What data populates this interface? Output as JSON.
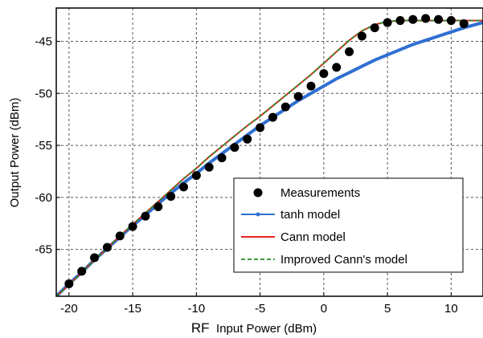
{
  "chart_data": {
    "type": "line",
    "xlabel_prefix": "RF",
    "xlabel": "Input Power (dBm)",
    "ylabel": "Output Power (dBm)",
    "xlim": [
      -21,
      12.5
    ],
    "ylim": [
      -69.5,
      -41.8
    ],
    "xticks": [
      -20,
      -15,
      -10,
      -5,
      0,
      5,
      10
    ],
    "yticks": [
      -45,
      -50,
      -55,
      -60,
      -65
    ],
    "grid": true,
    "legend_position": "lower-right",
    "series": [
      {
        "name": "Measurements",
        "kind": "scatter",
        "color": "#000000",
        "x": [
          -20,
          -19,
          -18,
          -17,
          -16,
          -15,
          -14,
          -13,
          -12,
          -11,
          -10,
          -9,
          -8,
          -7,
          -6,
          -5,
          -4,
          -3,
          -2,
          -1,
          0,
          1,
          2,
          3,
          4,
          5,
          6,
          7,
          8,
          9,
          10,
          11
        ],
        "y": [
          -68.3,
          -67.1,
          -65.8,
          -64.8,
          -63.7,
          -62.8,
          -61.8,
          -60.9,
          -59.9,
          -59.0,
          -57.9,
          -57.1,
          -56.2,
          -55.2,
          -54.4,
          -53.3,
          -52.3,
          -51.3,
          -50.3,
          -49.3,
          -48.1,
          -47.5,
          -46.0,
          -44.5,
          -43.7,
          -43.2,
          -43.0,
          -42.9,
          -42.8,
          -42.9,
          -43.0,
          -43.3
        ]
      },
      {
        "name": "tanh model",
        "kind": "line",
        "color": "#2f6fd1",
        "x": [
          -21,
          -20,
          -19,
          -18,
          -17,
          -16,
          -15,
          -14,
          -13,
          -12,
          -11,
          -10,
          -9,
          -8,
          -7,
          -6,
          -5,
          -4,
          -3,
          -2,
          -1,
          0,
          1,
          2,
          3,
          4,
          5,
          6,
          7,
          8,
          9,
          10,
          11,
          12.5
        ],
        "y": [
          -69.5,
          -68.3,
          -67.2,
          -66.0,
          -64.9,
          -63.8,
          -62.7,
          -61.7,
          -60.6,
          -59.6,
          -58.6,
          -57.7,
          -56.7,
          -55.8,
          -54.9,
          -54.0,
          -53.1,
          -52.3,
          -51.5,
          -50.7,
          -50.0,
          -49.3,
          -48.6,
          -48.0,
          -47.4,
          -46.8,
          -46.3,
          -45.8,
          -45.3,
          -44.9,
          -44.5,
          -44.1,
          -43.7,
          -43.2
        ]
      },
      {
        "name": "Cann model",
        "kind": "line",
        "color": "#e8231b",
        "x": [
          -21,
          -20,
          -19,
          -18,
          -17,
          -16,
          -15,
          -14,
          -13,
          -12,
          -11,
          -10,
          -9,
          -8,
          -7,
          -6,
          -5,
          -4,
          -3,
          -2,
          -1,
          0,
          1,
          2,
          3,
          4,
          5,
          6,
          7,
          8,
          9,
          10,
          11,
          12.5
        ],
        "y": [
          -69.5,
          -68.4,
          -67.2,
          -66.0,
          -64.9,
          -63.7,
          -62.6,
          -61.5,
          -60.4,
          -59.3,
          -58.2,
          -57.2,
          -56.1,
          -55.1,
          -54.1,
          -53.1,
          -52.2,
          -51.2,
          -50.2,
          -49.2,
          -48.2,
          -47.1,
          -46.0,
          -44.9,
          -44.0,
          -43.4,
          -43.1,
          -43.0,
          -43.0,
          -43.0,
          -43.0,
          -43.0,
          -43.0,
          -43.0
        ]
      },
      {
        "name": "Improved Cann's model",
        "kind": "dashed-line",
        "color": "#2a8a2a",
        "x": [
          -21,
          -20,
          -19,
          -18,
          -17,
          -16,
          -15,
          -14,
          -13,
          -12,
          -11,
          -10,
          -9,
          -8,
          -7,
          -6,
          -5,
          -4,
          -3,
          -2,
          -1,
          0,
          1,
          2,
          3,
          4,
          5,
          6,
          7,
          8,
          9,
          10,
          11,
          12.5
        ],
        "y": [
          -69.5,
          -68.4,
          -67.2,
          -66.0,
          -64.9,
          -63.7,
          -62.6,
          -61.5,
          -60.4,
          -59.3,
          -58.2,
          -57.2,
          -56.1,
          -55.1,
          -54.1,
          -53.1,
          -52.2,
          -51.2,
          -50.2,
          -49.2,
          -48.2,
          -47.1,
          -46.0,
          -44.9,
          -44.0,
          -43.4,
          -43.1,
          -43.0,
          -43.0,
          -43.0,
          -43.0,
          -43.0,
          -43.0,
          -43.0
        ]
      }
    ]
  }
}
